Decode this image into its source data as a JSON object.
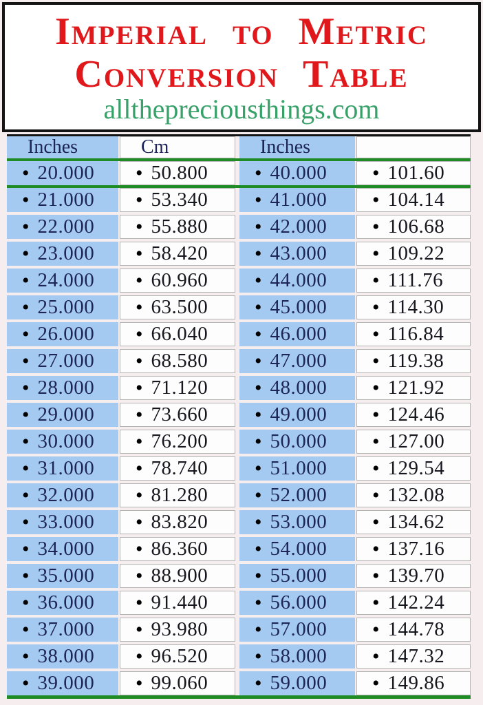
{
  "header": {
    "title_line1": "Imperial to Metric",
    "title_line2": "Conversion Table",
    "website": "allthepreciousthings.com"
  },
  "table": {
    "columns": [
      "Inches",
      "Cm",
      "Inches",
      ""
    ],
    "bullet": "•",
    "rows": [
      [
        "20.000",
        "50.800",
        "40.000",
        "101.60"
      ],
      [
        "21.000",
        "53.340",
        "41.000",
        "104.14"
      ],
      [
        "22.000",
        "55.880",
        "42.000",
        "106.68"
      ],
      [
        "23.000",
        "58.420",
        "43.000",
        "109.22"
      ],
      [
        "24.000",
        "60.960",
        "44.000",
        "111.76"
      ],
      [
        "25.000",
        "63.500",
        "45.000",
        "114.30"
      ],
      [
        "26.000",
        "66.040",
        "46.000",
        "116.84"
      ],
      [
        "27.000",
        "68.580",
        "47.000",
        "119.38"
      ],
      [
        "28.000",
        "71.120",
        "48.000",
        "121.92"
      ],
      [
        "29.000",
        "73.660",
        "49.000",
        "124.46"
      ],
      [
        "30.000",
        "76.200",
        "50.000",
        "127.00"
      ],
      [
        "31.000",
        "78.740",
        "51.000",
        "129.54"
      ],
      [
        "32.000",
        "81.280",
        "52.000",
        "132.08"
      ],
      [
        "33.000",
        "83.820",
        "53.000",
        "134.62"
      ],
      [
        "34.000",
        "86.360",
        "54.000",
        "137.16"
      ],
      [
        "35.000",
        "88.900",
        "55.000",
        "139.70"
      ],
      [
        "36.000",
        "91.440",
        "56.000",
        "142.24"
      ],
      [
        "37.000",
        "93.980",
        "57.000",
        "144.78"
      ],
      [
        "38.000",
        "96.520",
        "58.000",
        "147.32"
      ],
      [
        "39.000",
        "99.060",
        "59.000",
        "149.86"
      ]
    ]
  },
  "colors": {
    "title_red": "#e0181b",
    "url_green": "#38a169",
    "cell_blue": "#a5caf2",
    "line_green": "#1f8b24",
    "inches_text": "#1c2458",
    "cm_text": "#16161e",
    "page_bg": "#f6edee"
  }
}
